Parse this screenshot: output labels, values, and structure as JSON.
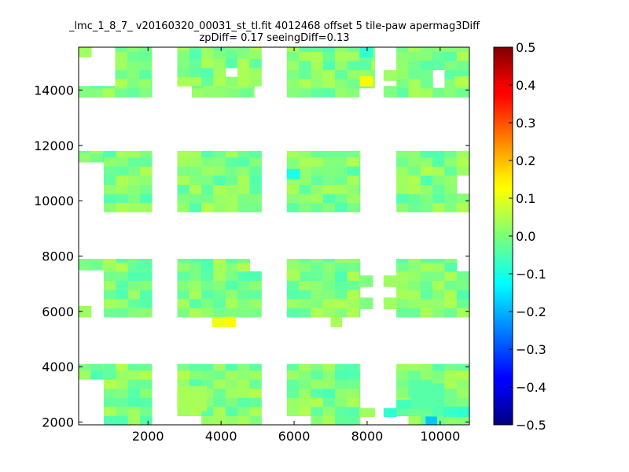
{
  "chart_data": {
    "type": "heatmap",
    "title": "_lmc_1_8_7_ v20160320_00031_st_tl.fit 4012468 offset 5 tile-paw apermag3Diff",
    "subtitle": "zpDiff= 0.17 seeingDiff=0.13",
    "xlim": [
      100,
      10800
    ],
    "ylim": [
      1900,
      15550
    ],
    "x_ticks": [
      2000,
      4000,
      6000,
      8000,
      10000
    ],
    "y_ticks": [
      2000,
      4000,
      6000,
      8000,
      10000,
      12000,
      14000
    ],
    "colorbar": {
      "range": [
        -0.5,
        0.5
      ],
      "ticks": [
        0.5,
        0.4,
        0.3,
        0.2,
        0.1,
        0.0,
        -0.1,
        -0.2,
        -0.3,
        -0.4,
        -0.5
      ],
      "tick_labels": [
        "0.5",
        "0.4",
        "0.3",
        "0.2",
        "0.1",
        "0.0",
        "−0.1",
        "−0.2",
        "−0.3",
        "−0.4",
        "−0.5"
      ],
      "colormap": "jet"
    },
    "grid": false,
    "cell_size": 330,
    "dominant_value": 0.0,
    "blocks": [
      {
        "x0": 100,
        "x1": 790,
        "y0": 1900,
        "y1": 4100
      },
      {
        "x0": 790,
        "x1": 2100,
        "y0": 1900,
        "y1": 4100
      },
      {
        "x0": 2800,
        "x1": 5100,
        "y0": 1900,
        "y1": 4100
      },
      {
        "x0": 5800,
        "x1": 7800,
        "y0": 1900,
        "y1": 4100
      },
      {
        "x0": 8800,
        "x1": 10800,
        "y0": 1900,
        "y1": 4100
      },
      {
        "x0": 100,
        "x1": 790,
        "y0": 7500,
        "y1": 7900
      },
      {
        "x0": 790,
        "x1": 2100,
        "y0": 5800,
        "y1": 7900
      },
      {
        "x0": 2800,
        "x1": 5100,
        "y0": 5800,
        "y1": 7900
      },
      {
        "x0": 5800,
        "x1": 7800,
        "y0": 5800,
        "y1": 7900
      },
      {
        "x0": 8800,
        "x1": 10800,
        "y0": 5800,
        "y1": 7900
      },
      {
        "x0": 100,
        "x1": 790,
        "y0": 11400,
        "y1": 11800
      },
      {
        "x0": 790,
        "x1": 2100,
        "y0": 9600,
        "y1": 11800
      },
      {
        "x0": 2800,
        "x1": 5100,
        "y0": 9600,
        "y1": 11800
      },
      {
        "x0": 5800,
        "x1": 7800,
        "y0": 9600,
        "y1": 11800
      },
      {
        "x0": 8800,
        "x1": 10800,
        "y0": 9600,
        "y1": 11800
      },
      {
        "x0": 100,
        "x1": 1100,
        "y0": 13750,
        "y1": 14150
      },
      {
        "x0": 1100,
        "x1": 2100,
        "y0": 13750,
        "y1": 15550
      },
      {
        "x0": 2800,
        "x1": 5100,
        "y0": 14150,
        "y1": 15550
      },
      {
        "x0": 3200,
        "x1": 4900,
        "y0": 13750,
        "y1": 14150
      },
      {
        "x0": 5800,
        "x1": 8200,
        "y0": 13750,
        "y1": 15550
      },
      {
        "x0": 8800,
        "x1": 10800,
        "y0": 13750,
        "y1": 15550
      }
    ],
    "holes": [
      {
        "x0": 100,
        "x1": 790,
        "y0": 1900,
        "y1": 3700
      },
      {
        "x0": 100,
        "x1": 790,
        "y0": 5800,
        "y1": 7500
      },
      {
        "x0": 100,
        "x1": 790,
        "y0": 9600,
        "y1": 11400
      },
      {
        "x0": 100,
        "x1": 1100,
        "y0": 14150,
        "y1": 15550
      },
      {
        "x0": 4270,
        "x1": 4600,
        "y0": 14340,
        "y1": 14720
      },
      {
        "x0": 9800,
        "x1": 10100,
        "y0": 13950,
        "y1": 14720
      },
      {
        "x0": 10400,
        "x1": 10800,
        "y0": 10400,
        "y1": 10900
      },
      {
        "x0": 4900,
        "x1": 5100,
        "y0": 7500,
        "y1": 7900
      },
      {
        "x0": 7800,
        "x1": 8200,
        "y0": 13750,
        "y1": 14150
      },
      {
        "x0": 10450,
        "x1": 10800,
        "y0": 7500,
        "y1": 7900
      },
      {
        "x0": 2800,
        "x1": 3300,
        "y0": 1900,
        "y1": 2300
      },
      {
        "x0": 5800,
        "x1": 6300,
        "y0": 1900,
        "y1": 2200
      },
      {
        "x0": 8800,
        "x1": 9200,
        "y0": 1900,
        "y1": 2300
      }
    ],
    "extras": [
      {
        "x0": 100,
        "x1": 440,
        "y0": 15200,
        "y1": 15550,
        "value": 0.03
      },
      {
        "x0": 100,
        "x1": 440,
        "y0": 5800,
        "y1": 6200,
        "value": 0.03
      },
      {
        "x0": 8450,
        "x1": 8800,
        "y0": 13750,
        "y1": 14150
      },
      {
        "x0": 8450,
        "x1": 8800,
        "y0": 14350,
        "y1": 14720,
        "value": 0.03
      },
      {
        "x0": 8450,
        "x1": 8800,
        "y0": 6900,
        "y1": 7300,
        "value": 0.03
      },
      {
        "x0": 8450,
        "x1": 8800,
        "y0": 6100,
        "y1": 6500,
        "value": 0.03
      },
      {
        "x0": 7800,
        "x1": 8150,
        "y0": 6900,
        "y1": 7300,
        "value": 0.0
      },
      {
        "x0": 7800,
        "x1": 8150,
        "y0": 6100,
        "y1": 6500,
        "value": 0.0
      },
      {
        "x0": 7800,
        "x1": 8200,
        "y0": 2200,
        "y1": 2500,
        "value": 0.03
      },
      {
        "x0": 8450,
        "x1": 8800,
        "y0": 2200,
        "y1": 2500,
        "value": -0.08
      },
      {
        "x0": 7000,
        "x1": 7300,
        "y0": 5450,
        "y1": 5800,
        "value": 0.04
      },
      {
        "x0": 3750,
        "x1": 4100,
        "y0": 5450,
        "y1": 5800,
        "value": 0.11
      },
      {
        "x0": 4100,
        "x1": 4400,
        "y0": 5450,
        "y1": 5800,
        "value": 0.13
      },
      {
        "x0": 9600,
        "x1": 9900,
        "y0": 1900,
        "y1": 2200,
        "value": -0.18
      }
    ],
    "highlights": [
      {
        "x0": 7800,
        "x1": 8150,
        "y0": 14150,
        "y1": 14500,
        "value": 0.13
      },
      {
        "x0": 7800,
        "x1": 8150,
        "y0": 15200,
        "y1": 15550,
        "value": -0.08
      },
      {
        "x0": 5800,
        "x1": 6150,
        "y0": 10800,
        "y1": 11150,
        "value": -0.1
      },
      {
        "x0": 5800,
        "x1": 6150,
        "y0": 7150,
        "y1": 7500,
        "value": 0.04
      },
      {
        "x0": 10450,
        "x1": 10800,
        "y0": 2200,
        "y1": 2550,
        "value": -0.08
      },
      {
        "x0": 10100,
        "x1": 10450,
        "y0": 2200,
        "y1": 2550,
        "value": -0.07
      },
      {
        "x0": 9200,
        "x1": 10100,
        "y0": 2500,
        "y1": 3400,
        "value": -0.04
      },
      {
        "x0": 8800,
        "x1": 9200,
        "y0": 2500,
        "y1": 2800,
        "value": -0.06
      },
      {
        "x0": 2800,
        "x1": 3600,
        "y0": 2400,
        "y1": 3300,
        "value": 0.04
      },
      {
        "x0": 10400,
        "x1": 10800,
        "y0": 14150,
        "y1": 14500,
        "value": 0.05
      },
      {
        "x0": 790,
        "x1": 1100,
        "y0": 3700,
        "y1": 4100,
        "value": -0.03
      },
      {
        "x0": 1700,
        "x1": 2100,
        "y0": 7500,
        "y1": 7900,
        "value": -0.04
      }
    ]
  }
}
